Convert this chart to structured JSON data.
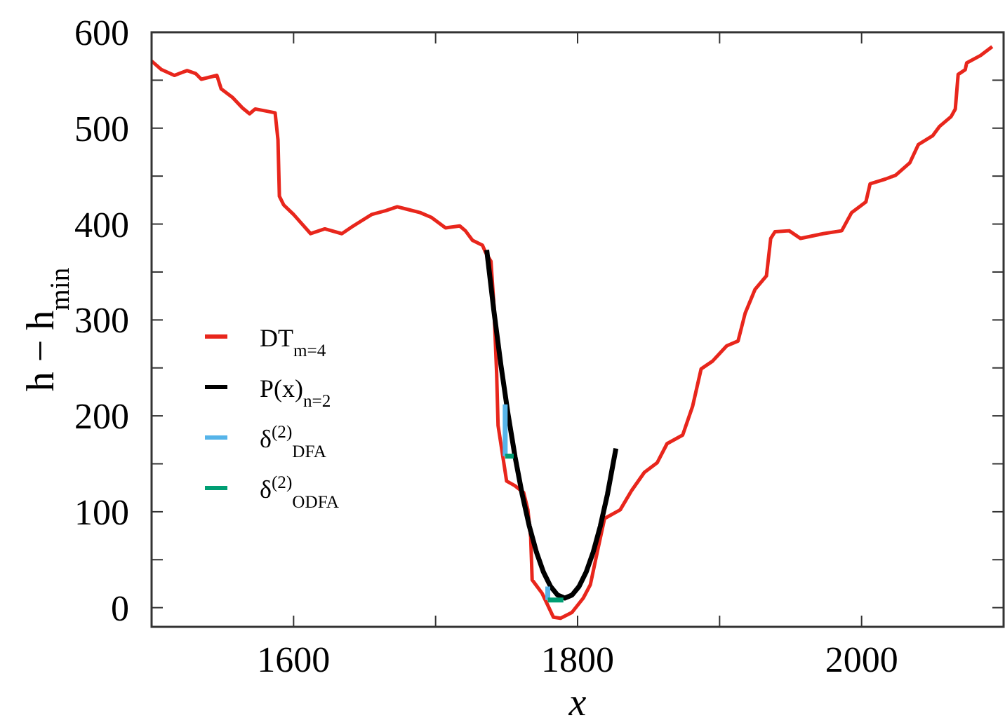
{
  "chart_data": {
    "type": "line",
    "xlabel": "x",
    "ylabel": "h − h$_{min}$",
    "xlim": [
      1500,
      2100
    ],
    "ylim": [
      -20,
      600
    ],
    "xticks": [
      1600,
      {
        "value": 1700,
        "label": null
      },
      1800,
      {
        "value": 1900,
        "label": null
      },
      2000
    ],
    "yticks": [
      0,
      {
        "value": 50,
        "label": null
      },
      100,
      {
        "value": 150,
        "label": null
      },
      200,
      {
        "value": 250,
        "label": null
      },
      300,
      {
        "value": 350,
        "label": null
      },
      400,
      {
        "value": 450,
        "label": null
      },
      500,
      {
        "value": 550,
        "label": null
      },
      600
    ],
    "legend": "left",
    "series": [
      {
        "name": "DT$_{m=4}$",
        "color": "#e8261c",
        "x": [
          1500,
          1507,
          1516,
          1525,
          1531,
          1535,
          1546,
          1549,
          1557,
          1564,
          1569,
          1573,
          1580,
          1587,
          1589,
          1590,
          1593,
          1600,
          1606,
          1612,
          1622,
          1634,
          1642,
          1655,
          1665,
          1673,
          1681,
          1689,
          1697,
          1707,
          1717,
          1721,
          1726,
          1733,
          1735,
          1739,
          1741,
          1743,
          1744,
          1747,
          1750,
          1756,
          1762,
          1765,
          1767,
          1768,
          1775,
          1783,
          1788,
          1796,
          1804,
          1809,
          1814,
          1819,
          1830,
          1838,
          1847,
          1856,
          1863,
          1874,
          1881,
          1887,
          1895,
          1905,
          1913,
          1918,
          1925,
          1933,
          1936,
          1939,
          1949,
          1957,
          1973,
          1986,
          1993,
          2003,
          2006,
          2017,
          2024,
          2034,
          2040,
          2050,
          2055,
          2063,
          2066,
          2068,
          2073,
          2074,
          2084,
          2092
        ],
        "values": [
          570,
          561,
          555,
          560,
          557,
          551,
          555,
          541,
          532,
          521,
          515,
          520,
          518,
          516,
          488,
          429,
          420,
          410,
          400,
          390,
          395,
          390,
          398,
          410,
          414,
          418,
          415,
          412,
          407,
          396,
          398,
          393,
          383,
          378,
          371,
          361,
          317,
          244,
          190,
          161,
          132,
          127,
          120,
          102,
          73,
          29,
          15,
          -10,
          -11,
          -5,
          10,
          24,
          59,
          93,
          102,
          122,
          141,
          151,
          171,
          180,
          210,
          249,
          257,
          273,
          278,
          307,
          332,
          346,
          385,
          392,
          393,
          385,
          390,
          393,
          412,
          423,
          442,
          447,
          451,
          464,
          483,
          492,
          502,
          512,
          520,
          556,
          561,
          568,
          576,
          585
        ]
      },
      {
        "name": "P(x)$_{n=2}$",
        "color": "#000000",
        "x": [
          1736,
          1741,
          1746,
          1751,
          1756,
          1761,
          1766,
          1771,
          1776,
          1781,
          1786,
          1791,
          1796,
          1801,
          1806,
          1811,
          1816,
          1821,
          1827
        ],
        "values": [
          373,
          310,
          253,
          202,
          157,
          118,
          85,
          58,
          37,
          22,
          13,
          10,
          13,
          22,
          37,
          58,
          85,
          118,
          166
        ]
      },
      {
        "name": "δ$^{(2)}$$_{DFA}$",
        "color": "#56b4e9",
        "x": [
          1749,
          1749,
          1764,
          1779,
          1779
        ],
        "values": [
          212,
          158,
          null,
          22,
          8
        ]
      },
      {
        "name": "δ$^{(2)}$$_{ODFA}$",
        "color": "#009e73",
        "x": [
          1749,
          1755,
          1770,
          1779,
          1790
        ],
        "values": [
          158,
          158,
          null,
          8,
          8
        ]
      }
    ]
  }
}
